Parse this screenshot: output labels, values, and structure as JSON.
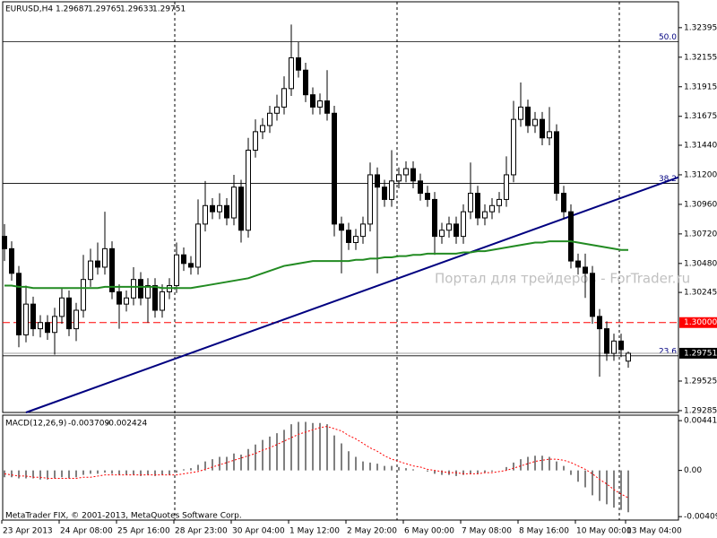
{
  "chart_data": {
    "type": "candlestick",
    "symbol": "EURUSD,H4",
    "watermark": "Портал для трейдеров - ForTrader.ru",
    "footer": "MetaTrader FIX, © 2001-2013, MetaQuotes Software Corp.",
    "ylim": [
      1.2927,
      1.32605
    ],
    "yticks": [
      {
        "value": 1.32395,
        "label": "1.32395"
      },
      {
        "value": 1.32155,
        "label": "1.32155"
      },
      {
        "value": 1.31915,
        "label": "1.31915"
      },
      {
        "value": 1.31675,
        "label": "1.31675"
      },
      {
        "value": 1.3144,
        "label": "1.31440"
      },
      {
        "value": 1.312,
        "label": "1.31200"
      },
      {
        "value": 1.3096,
        "label": "1.30960"
      },
      {
        "value": 1.3072,
        "label": "1.30720"
      },
      {
        "value": 1.3048,
        "label": "1.30480"
      },
      {
        "value": 1.30245,
        "label": "1.30245"
      },
      {
        "value": 1.29525,
        "label": "1.29525"
      },
      {
        "value": 1.29285,
        "label": "1.29285"
      }
    ],
    "categories": [
      "23 Apr 2013",
      null,
      null,
      null,
      null,
      null,
      null,
      null,
      "24 Apr 08:00",
      null,
      null,
      null,
      null,
      null,
      null,
      null,
      "25 Apr 16:00",
      null,
      null,
      null,
      null,
      null,
      null,
      null,
      "28 Apr 23:00",
      null,
      null,
      null,
      null,
      null,
      null,
      null,
      "30 Apr 04:00",
      null,
      null,
      null,
      null,
      null,
      null,
      null,
      "1 May 12:00",
      null,
      null,
      null,
      null,
      null,
      null,
      null,
      "2 May 20:00",
      null,
      null,
      null,
      null,
      null,
      null,
      null,
      "6 May 00:00",
      null,
      null,
      null,
      null,
      null,
      null,
      null,
      "7 May 08:00",
      null,
      null,
      null,
      null,
      null,
      null,
      null,
      "8 May 16:00",
      null,
      null,
      null,
      null,
      null,
      null,
      null,
      "10 May 00:00",
      null,
      null,
      null,
      null,
      null,
      null,
      "13 May 04:00"
    ],
    "candles": [
      [
        1.307,
        1.308,
        1.305,
        1.306
      ],
      [
        1.306,
        1.3066,
        1.3034,
        1.304
      ],
      [
        1.304,
        1.3046,
        1.298,
        1.299
      ],
      [
        1.299,
        1.303,
        1.2984,
        1.3015
      ],
      [
        1.3015,
        1.3021,
        1.2989,
        1.2995
      ],
      [
        1.2995,
        1.3006,
        1.2988,
        1.3
      ],
      [
        1.3,
        1.3006,
        1.2986,
        1.2992
      ],
      [
        1.2992,
        1.3012,
        1.2974,
        1.3005
      ],
      [
        1.3005,
        1.3028,
        1.2999,
        1.302
      ],
      [
        1.302,
        1.3026,
        1.2989,
        1.2995
      ],
      [
        1.2995,
        1.3016,
        1.2985,
        1.301
      ],
      [
        1.301,
        1.3055,
        1.3004,
        1.3035
      ],
      [
        1.3035,
        1.306,
        1.3029,
        1.305
      ],
      [
        1.305,
        1.3065,
        1.3039,
        1.3045
      ],
      [
        1.3045,
        1.309,
        1.3039,
        1.306
      ],
      [
        1.306,
        1.3066,
        1.3019,
        1.3025
      ],
      [
        1.3025,
        1.3031,
        1.2995,
        1.3015
      ],
      [
        1.3015,
        1.3026,
        1.3009,
        1.302
      ],
      [
        1.302,
        1.3045,
        1.3014,
        1.3035
      ],
      [
        1.3035,
        1.3041,
        1.3014,
        1.302
      ],
      [
        1.302,
        1.3036,
        1.3,
        1.303
      ],
      [
        1.303,
        1.3036,
        1.3004,
        1.301
      ],
      [
        1.301,
        1.3031,
        1.3004,
        1.3025
      ],
      [
        1.3025,
        1.3036,
        1.3019,
        1.303
      ],
      [
        1.303,
        1.3065,
        1.3024,
        1.3055
      ],
      [
        1.3055,
        1.3061,
        1.3042,
        1.3048
      ],
      [
        1.3048,
        1.3054,
        1.3039,
        1.3045
      ],
      [
        1.3045,
        1.31,
        1.3039,
        1.308
      ],
      [
        1.308,
        1.3115,
        1.3074,
        1.3095
      ],
      [
        1.3095,
        1.3101,
        1.3084,
        1.309
      ],
      [
        1.309,
        1.3105,
        1.3084,
        1.3095
      ],
      [
        1.3095,
        1.3101,
        1.3079,
        1.3085
      ],
      [
        1.3085,
        1.312,
        1.3079,
        1.311
      ],
      [
        1.311,
        1.3116,
        1.3065,
        1.3075
      ],
      [
        1.3075,
        1.315,
        1.3069,
        1.314
      ],
      [
        1.314,
        1.3165,
        1.3134,
        1.3155
      ],
      [
        1.3155,
        1.3166,
        1.3149,
        1.316
      ],
      [
        1.316,
        1.3176,
        1.3154,
        1.317
      ],
      [
        1.317,
        1.3185,
        1.3164,
        1.3175
      ],
      [
        1.3175,
        1.32,
        1.3169,
        1.319
      ],
      [
        1.319,
        1.3242,
        1.3184,
        1.3215
      ],
      [
        1.3215,
        1.3228,
        1.3199,
        1.3205
      ],
      [
        1.3205,
        1.3211,
        1.3179,
        1.3185
      ],
      [
        1.3185,
        1.3191,
        1.3169,
        1.3175
      ],
      [
        1.3175,
        1.3186,
        1.3169,
        1.318
      ],
      [
        1.318,
        1.3205,
        1.3164,
        1.317
      ],
      [
        1.317,
        1.3176,
        1.307,
        1.308
      ],
      [
        1.308,
        1.3086,
        1.304,
        1.3075
      ],
      [
        1.3075,
        1.3081,
        1.3059,
        1.3065
      ],
      [
        1.3065,
        1.3076,
        1.3059,
        1.307
      ],
      [
        1.307,
        1.3086,
        1.3064,
        1.308
      ],
      [
        1.308,
        1.313,
        1.3074,
        1.312
      ],
      [
        1.312,
        1.3126,
        1.304,
        1.311
      ],
      [
        1.311,
        1.3116,
        1.3094,
        1.31
      ],
      [
        1.31,
        1.314,
        1.3094,
        1.3115
      ],
      [
        1.3115,
        1.3126,
        1.3109,
        1.312
      ],
      [
        1.312,
        1.3131,
        1.3114,
        1.3125
      ],
      [
        1.3125,
        1.3131,
        1.3109,
        1.3115
      ],
      [
        1.3115,
        1.3121,
        1.3099,
        1.3105
      ],
      [
        1.3105,
        1.3111,
        1.3094,
        1.31
      ],
      [
        1.31,
        1.3106,
        1.3055,
        1.307
      ],
      [
        1.307,
        1.3081,
        1.3064,
        1.3075
      ],
      [
        1.3075,
        1.3086,
        1.3069,
        1.308
      ],
      [
        1.308,
        1.3086,
        1.3064,
        1.307
      ],
      [
        1.307,
        1.3096,
        1.3064,
        1.309
      ],
      [
        1.309,
        1.313,
        1.3084,
        1.3105
      ],
      [
        1.3105,
        1.3111,
        1.3079,
        1.3085
      ],
      [
        1.3085,
        1.3096,
        1.3079,
        1.309
      ],
      [
        1.309,
        1.3101,
        1.3084,
        1.3095
      ],
      [
        1.3095,
        1.3106,
        1.3089,
        1.31
      ],
      [
        1.31,
        1.3135,
        1.3094,
        1.312
      ],
      [
        1.312,
        1.318,
        1.3114,
        1.3165
      ],
      [
        1.3165,
        1.3195,
        1.3159,
        1.3175
      ],
      [
        1.3175,
        1.3181,
        1.3154,
        1.316
      ],
      [
        1.316,
        1.3171,
        1.3154,
        1.3165
      ],
      [
        1.3165,
        1.3171,
        1.3144,
        1.315
      ],
      [
        1.315,
        1.3175,
        1.3144,
        1.3155
      ],
      [
        1.3155,
        1.3161,
        1.3099,
        1.3105
      ],
      [
        1.3105,
        1.3111,
        1.3084,
        1.309
      ],
      [
        1.309,
        1.3096,
        1.3044,
        1.305
      ],
      [
        1.305,
        1.3056,
        1.3039,
        1.3045
      ],
      [
        1.3045,
        1.3056,
        1.302,
        1.304
      ],
      [
        1.304,
        1.3046,
        1.2999,
        1.3005
      ],
      [
        1.3005,
        1.3011,
        1.2956,
        1.2995
      ],
      [
        1.2995,
        1.3001,
        1.2969,
        1.2975
      ],
      [
        1.2975,
        1.2991,
        1.2969,
        1.2985
      ],
      [
        1.2985,
        1.2991,
        1.2972,
        1.2978
      ],
      [
        1.29687,
        1.29765,
        1.29633,
        1.29751
      ]
    ],
    "ma": {
      "color": "#228b22",
      "values": [
        1.303,
        1.303,
        1.3029,
        1.3029,
        1.3028,
        1.3028,
        1.3028,
        1.3028,
        1.3028,
        1.3028,
        1.3028,
        1.3028,
        1.3028,
        1.3028,
        1.3029,
        1.3029,
        1.3029,
        1.3029,
        1.3029,
        1.3029,
        1.3029,
        1.3029,
        1.3028,
        1.3028,
        1.3028,
        1.3028,
        1.3028,
        1.3029,
        1.303,
        1.3031,
        1.3032,
        1.3033,
        1.3034,
        1.3035,
        1.3036,
        1.3038,
        1.304,
        1.3042,
        1.3044,
        1.3046,
        1.3047,
        1.3048,
        1.3049,
        1.305,
        1.305,
        1.305,
        1.305,
        1.305,
        1.305,
        1.3051,
        1.3051,
        1.3052,
        1.3052,
        1.3053,
        1.3053,
        1.3054,
        1.3054,
        1.3055,
        1.3055,
        1.3056,
        1.3056,
        1.3056,
        1.3056,
        1.3056,
        1.3057,
        1.3057,
        1.3058,
        1.3058,
        1.3059,
        1.306,
        1.3061,
        1.3062,
        1.3063,
        1.3064,
        1.3065,
        1.3065,
        1.3066,
        1.3066,
        1.3066,
        1.3066,
        1.3065,
        1.3064,
        1.3063,
        1.3062,
        1.3061,
        1.306,
        1.3059,
        1.3059
      ]
    },
    "trendline": {
      "color": "#000080",
      "start": [
        3,
        1.2927
      ],
      "end": [
        94,
        1.3118
      ]
    },
    "fibo": [
      {
        "label": "50.0",
        "value": 1.3228
      },
      {
        "label": "38.2",
        "value": 1.3113
      },
      {
        "label": "23.6",
        "value": 1.2973
      }
    ],
    "hline": {
      "value": 1.3,
      "label": "1.30000",
      "color": "#ff0000"
    },
    "macd": {
      "name": "MACD(12,26,9)",
      "ylim": [
        -0.0044,
        0.0049
      ],
      "yticks": [
        0.004415,
        {
          "value": 0,
          "label": "0.00"
        },
        -0.004096
      ],
      "signal_color": "#ff0000",
      "histogram": [
        -0.0006,
        -0.0006,
        -0.0007,
        -0.0007,
        -0.0007,
        -0.0008,
        -0.0008,
        -0.0007,
        -0.0006,
        -0.0007,
        -0.0006,
        -0.0004,
        -0.0003,
        -0.0003,
        -0.0002,
        -0.0003,
        -0.0004,
        -0.0004,
        -0.0004,
        -0.0005,
        -0.0004,
        -0.0005,
        -0.0004,
        -0.0004,
        -0.0002,
        0.0001,
        0.0002,
        0.0005,
        0.0008,
        0.001,
        0.0012,
        0.0012,
        0.0015,
        0.0014,
        0.0019,
        0.0023,
        0.0027,
        0.003,
        0.0033,
        0.0036,
        0.0041,
        0.0043,
        0.0043,
        0.0042,
        0.0042,
        0.0041,
        0.0031,
        0.0024,
        0.0017,
        0.0012,
        0.0008,
        0.0007,
        0.0006,
        0.0004,
        0.0004,
        0.0003,
        0.0002,
        0.0001,
        0.0,
        -0.0001,
        -0.0003,
        -0.0004,
        -0.0004,
        -0.0005,
        -0.0004,
        -0.0003,
        -0.0003,
        -0.0002,
        -0.0001,
        0.0,
        0.0003,
        0.0007,
        0.001,
        0.0012,
        0.0013,
        0.0013,
        0.0012,
        0.0008,
        0.0004,
        -0.0004,
        -0.001,
        -0.0015,
        -0.0022,
        -0.0027,
        -0.003,
        -0.0033,
        -0.0035,
        -0.003709
      ],
      "signal": [
        -0.0003,
        -0.0004,
        -0.0005,
        -0.0005,
        -0.0006,
        -0.0006,
        -0.0007,
        -0.0007,
        -0.0007,
        -0.0007,
        -0.0007,
        -0.0006,
        -0.0006,
        -0.0005,
        -0.0004,
        -0.0004,
        -0.0004,
        -0.0004,
        -0.0004,
        -0.0004,
        -0.0004,
        -0.0004,
        -0.0004,
        -0.0004,
        -0.0004,
        -0.0003,
        -0.0002,
        -0.0001,
        0.0001,
        0.0003,
        0.0005,
        0.0007,
        0.0009,
        0.0011,
        0.0013,
        0.0015,
        0.0018,
        0.002,
        0.0023,
        0.0026,
        0.0029,
        0.0032,
        0.0034,
        0.0036,
        0.0038,
        0.0039,
        0.0037,
        0.0035,
        0.0031,
        0.0028,
        0.0024,
        0.002,
        0.0017,
        0.0013,
        0.001,
        0.0008,
        0.0006,
        0.0004,
        0.0003,
        0.0001,
        0.0,
        -0.0001,
        -0.0002,
        -0.0002,
        -0.0003,
        -0.0003,
        -0.0003,
        -0.0002,
        -0.0002,
        -0.0001,
        0.0,
        0.0002,
        0.0004,
        0.0006,
        0.0008,
        0.0009,
        0.001,
        0.001,
        0.0009,
        0.0007,
        0.0004,
        0.0001,
        -0.0003,
        -0.0008,
        -0.0012,
        -0.0017,
        -0.0021,
        -0.002424
      ]
    }
  }
}
